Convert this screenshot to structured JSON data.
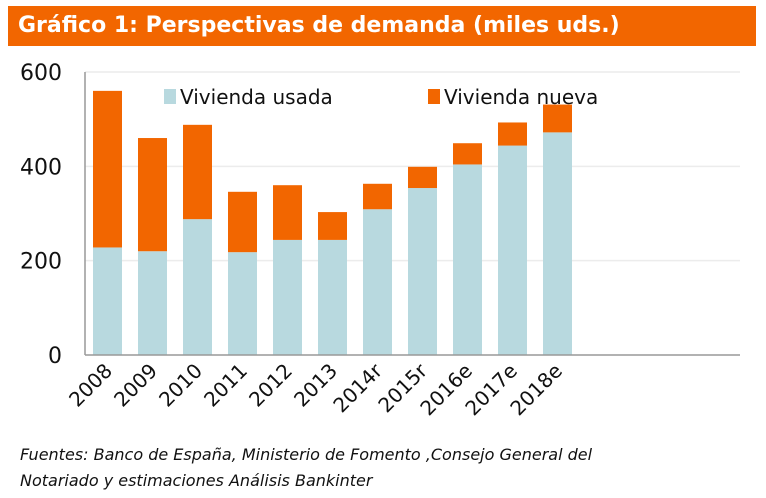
{
  "title": "Gráfico 1: Perspectivas de demanda (miles uds.)",
  "source_line1": "Fuentes: Banco de España, Ministerio de Fomento ,Consejo General del",
  "source_line2": "Notariado y estimaciones Análisis Bankinter",
  "chart_data": {
    "type": "bar",
    "stacked": true,
    "title": "Gráfico 1: Perspectivas de demanda (miles uds.)",
    "categories": [
      "2008",
      "2009",
      "2010",
      "2011",
      "2012",
      "2013",
      "2014r",
      "2015r",
      "2016e",
      "2017e",
      "2018e"
    ],
    "series": [
      {
        "name": "Vivienda usada",
        "color": "#b8d9df",
        "values": [
          228,
          220,
          288,
          218,
          244,
          244,
          309,
          354,
          404,
          444,
          472
        ]
      },
      {
        "name": "Vivienda nueva",
        "color": "#f26600",
        "values": [
          332,
          240,
          200,
          128,
          116,
          59,
          54,
          45,
          45,
          49,
          59
        ]
      }
    ],
    "ylim": [
      0,
      600
    ],
    "yticks": [
      0,
      200,
      400,
      600
    ],
    "grid": true,
    "legend": "top"
  }
}
